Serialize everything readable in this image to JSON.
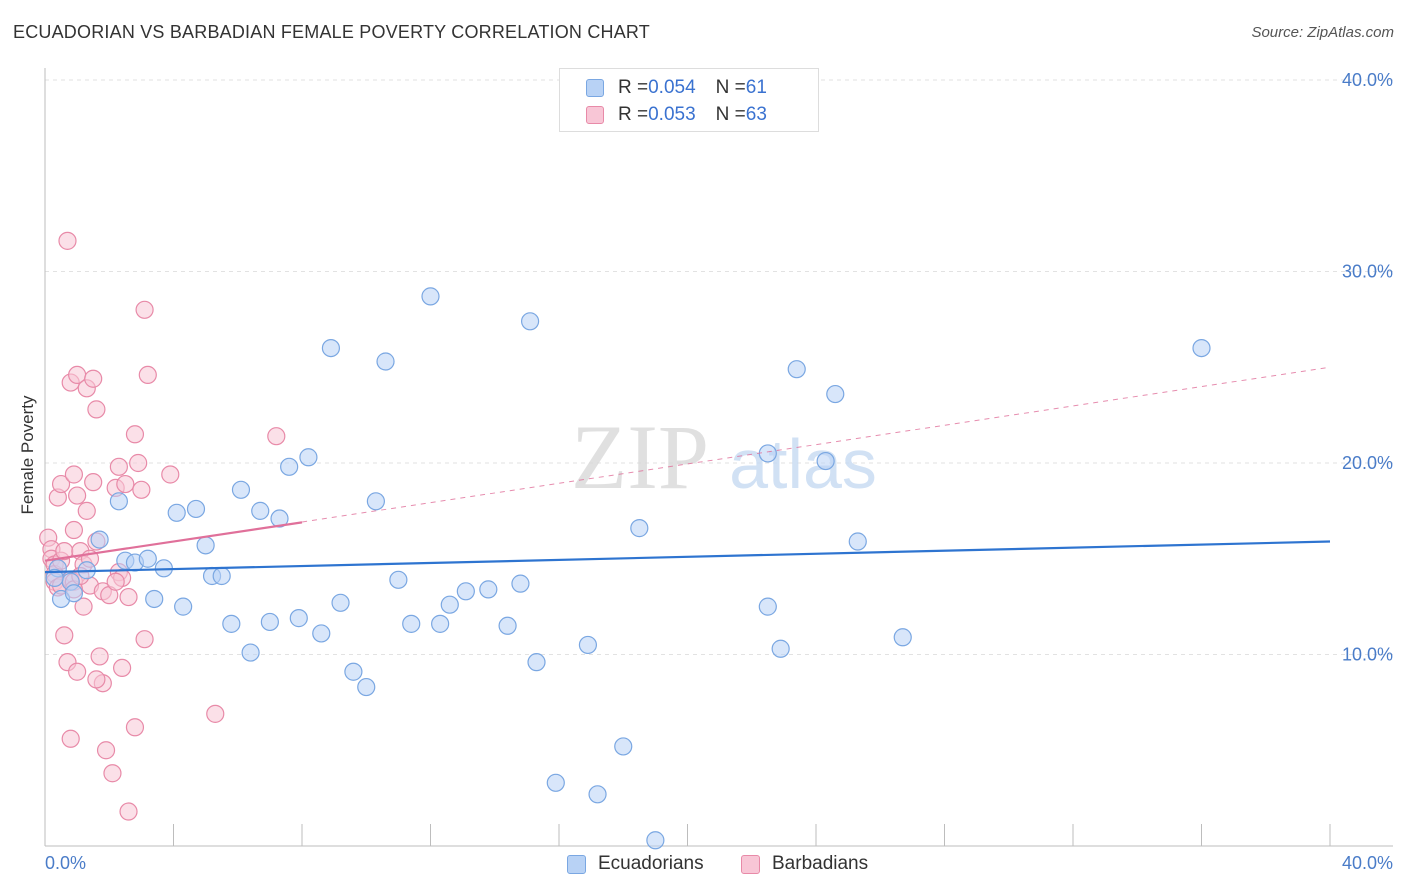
{
  "title": "ECUADORIAN VS BARBADIAN FEMALE POVERTY CORRELATION CHART",
  "source": "Source: ZipAtlas.com",
  "watermark": {
    "zip": "ZIP",
    "atlas": "atlas"
  },
  "legend": {
    "rows": [
      {
        "r_label": "R = ",
        "r_value": "0.054",
        "n_label": "N = ",
        "n_value": "61"
      },
      {
        "r_label": "R = ",
        "r_value": "0.053",
        "n_label": "N = ",
        "n_value": "63"
      }
    ]
  },
  "chart_data": {
    "type": "scatter",
    "title": "ECUADORIAN VS BARBADIAN FEMALE POVERTY CORRELATION CHART",
    "xlabel": "",
    "ylabel": "Female Poverty",
    "xlim": [
      0,
      40
    ],
    "ylim": [
      0,
      40
    ],
    "x_tick_labels": [
      "0.0%",
      "40.0%"
    ],
    "y_ticks": [
      10,
      20,
      30,
      40
    ],
    "y_tick_labels": [
      "10.0%",
      "20.0%",
      "30.0%",
      "40.0%"
    ],
    "grid": true,
    "legend_position": "top-center",
    "colors": {
      "ecuadorians_fill": "#b8d2f5",
      "ecuadorians_stroke": "#7aa7e2",
      "ecuadorians_line": "#2e74d0",
      "barbadians_fill": "#f8c6d6",
      "barbadians_stroke": "#e88aa8",
      "barbadians_line": "#e0709a"
    },
    "series": [
      {
        "name": "Ecuadorians",
        "r": 0.054,
        "n": 61,
        "trend": {
          "x": [
            0,
            40
          ],
          "y": [
            14.3,
            15.9
          ]
        },
        "points": [
          [
            0.4,
            14.5
          ],
          [
            0.5,
            12.9
          ],
          [
            0.8,
            13.8
          ],
          [
            0.9,
            13.2
          ],
          [
            1.3,
            14.4
          ],
          [
            1.7,
            16.0
          ],
          [
            2.3,
            18.0
          ],
          [
            2.5,
            14.9
          ],
          [
            2.8,
            14.8
          ],
          [
            3.2,
            15.0
          ],
          [
            3.4,
            12.9
          ],
          [
            3.7,
            14.5
          ],
          [
            4.1,
            17.4
          ],
          [
            4.3,
            12.5
          ],
          [
            4.7,
            17.6
          ],
          [
            5.0,
            15.7
          ],
          [
            5.2,
            14.1
          ],
          [
            5.5,
            14.1
          ],
          [
            5.8,
            11.6
          ],
          [
            6.1,
            18.6
          ],
          [
            6.4,
            10.1
          ],
          [
            6.7,
            17.5
          ],
          [
            7.0,
            11.7
          ],
          [
            7.3,
            17.1
          ],
          [
            7.6,
            19.8
          ],
          [
            7.9,
            11.9
          ],
          [
            8.2,
            20.3
          ],
          [
            8.6,
            11.1
          ],
          [
            8.9,
            26.0
          ],
          [
            9.2,
            12.7
          ],
          [
            9.6,
            9.1
          ],
          [
            10.0,
            8.3
          ],
          [
            10.3,
            18.0
          ],
          [
            10.6,
            25.3
          ],
          [
            11.0,
            13.9
          ],
          [
            11.4,
            11.6
          ],
          [
            12.0,
            28.7
          ],
          [
            12.3,
            11.6
          ],
          [
            12.6,
            12.6
          ],
          [
            13.1,
            13.3
          ],
          [
            13.8,
            13.4
          ],
          [
            14.4,
            11.5
          ],
          [
            14.8,
            13.7
          ],
          [
            15.1,
            27.4
          ],
          [
            15.3,
            9.6
          ],
          [
            15.9,
            3.3
          ],
          [
            16.9,
            10.5
          ],
          [
            17.2,
            2.7
          ],
          [
            18.0,
            5.2
          ],
          [
            18.5,
            16.6
          ],
          [
            19.0,
            0.3
          ],
          [
            22.5,
            12.5
          ],
          [
            22.5,
            20.5
          ],
          [
            22.9,
            10.3
          ],
          [
            23.4,
            24.9
          ],
          [
            24.3,
            20.1
          ],
          [
            24.6,
            23.6
          ],
          [
            25.3,
            15.9
          ],
          [
            26.7,
            10.9
          ],
          [
            36.0,
            26.0
          ],
          [
            0.3,
            14.0
          ]
        ]
      },
      {
        "name": "Barbadians",
        "r": 0.053,
        "n": 63,
        "trend": {
          "x": [
            0,
            8
          ],
          "y": [
            14.9,
            16.9
          ]
        },
        "trend_extended": {
          "x": [
            0,
            40
          ],
          "y": [
            14.9,
            25.0
          ]
        },
        "points": [
          [
            0.1,
            16.1
          ],
          [
            0.2,
            15.5
          ],
          [
            0.2,
            15.0
          ],
          [
            0.3,
            14.7
          ],
          [
            0.3,
            14.2
          ],
          [
            0.3,
            13.8
          ],
          [
            0.4,
            13.5
          ],
          [
            0.4,
            18.2
          ],
          [
            0.5,
            18.9
          ],
          [
            0.5,
            14.9
          ],
          [
            0.5,
            13.6
          ],
          [
            0.6,
            15.4
          ],
          [
            0.6,
            11.0
          ],
          [
            0.7,
            9.6
          ],
          [
            0.7,
            31.6
          ],
          [
            0.8,
            24.2
          ],
          [
            0.8,
            13.9
          ],
          [
            0.8,
            5.6
          ],
          [
            0.9,
            19.4
          ],
          [
            0.9,
            16.5
          ],
          [
            0.9,
            13.8
          ],
          [
            1.0,
            24.6
          ],
          [
            1.0,
            18.3
          ],
          [
            1.0,
            9.1
          ],
          [
            1.1,
            15.4
          ],
          [
            1.2,
            14.7
          ],
          [
            1.2,
            12.5
          ],
          [
            1.3,
            23.9
          ],
          [
            1.3,
            17.5
          ],
          [
            1.4,
            15.0
          ],
          [
            1.4,
            13.6
          ],
          [
            1.5,
            24.4
          ],
          [
            1.5,
            19.0
          ],
          [
            1.6,
            22.8
          ],
          [
            1.6,
            15.9
          ],
          [
            1.7,
            9.9
          ],
          [
            1.8,
            13.3
          ],
          [
            1.8,
            8.5
          ],
          [
            1.9,
            5.0
          ],
          [
            2.0,
            13.1
          ],
          [
            2.1,
            3.8
          ],
          [
            2.2,
            18.7
          ],
          [
            2.3,
            19.8
          ],
          [
            2.3,
            14.3
          ],
          [
            2.4,
            14.0
          ],
          [
            2.4,
            9.3
          ],
          [
            2.5,
            18.9
          ],
          [
            2.6,
            13.0
          ],
          [
            2.6,
            1.8
          ],
          [
            2.8,
            6.2
          ],
          [
            2.8,
            21.5
          ],
          [
            2.9,
            20.0
          ],
          [
            3.0,
            18.6
          ],
          [
            3.1,
            28.0
          ],
          [
            3.1,
            10.8
          ],
          [
            3.2,
            24.6
          ],
          [
            3.9,
            19.4
          ],
          [
            5.3,
            6.9
          ],
          [
            7.2,
            21.4
          ],
          [
            0.9,
            13.4
          ],
          [
            1.6,
            8.7
          ],
          [
            2.2,
            13.8
          ],
          [
            1.1,
            14.1
          ]
        ]
      }
    ]
  },
  "bottom_legend": [
    "Ecuadorians",
    "Barbadians"
  ]
}
